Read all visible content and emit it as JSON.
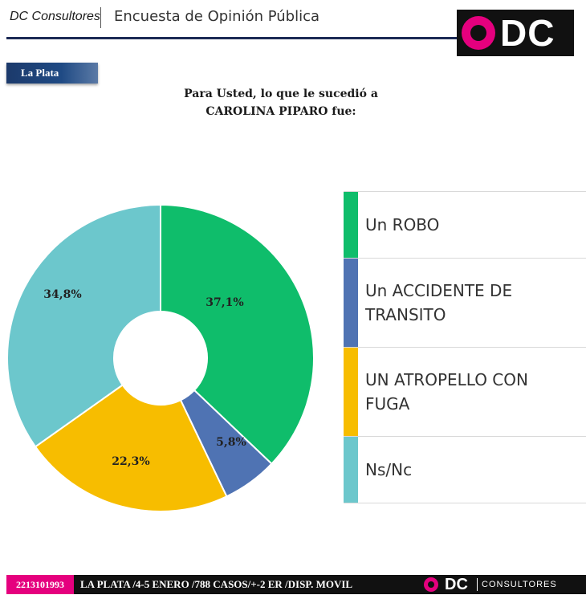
{
  "header": {
    "brand": "DC Consultores",
    "title": "Encuesta de Opinión Pública",
    "logo_text": "DC"
  },
  "region": "La Plata",
  "question": {
    "line1": "Para Usted, lo que le sucedió a",
    "line2": "CAROLINA PIPARO fue:"
  },
  "chart_data": {
    "type": "pie",
    "donut": true,
    "legend_position": "right",
    "categories": [
      "Un ROBO",
      "Un ACCIDENTE DE TRANSITO",
      "UN ATROPELLO CON FUGA",
      "Ns/Nc"
    ],
    "values": [
      37.1,
      5.8,
      22.3,
      34.8
    ],
    "labels": [
      "37,1%",
      "5,8%",
      "22,3%",
      "34,8%"
    ],
    "colors": [
      "#0fbd6b",
      "#4f73b3",
      "#f7bd00",
      "#6cc7cc"
    ],
    "legend": [
      [
        "Un ROBO"
      ],
      [
        "Un ACCIDENTE DE",
        "TRANSITO"
      ],
      [
        "UN ATROPELLO CON",
        "FUGA"
      ],
      [
        "Ns/Nc"
      ]
    ]
  },
  "footer": {
    "phone": "2213101993",
    "info": "LA PLATA /4-5 ENERO /788 CASOS/+-2 ER /DISP. MOVIL",
    "logo_text": "DC",
    "logo_word": "CONSULTORES"
  },
  "colors": {
    "brand_pink": "#e5007e",
    "navy": "#1c2a55"
  }
}
